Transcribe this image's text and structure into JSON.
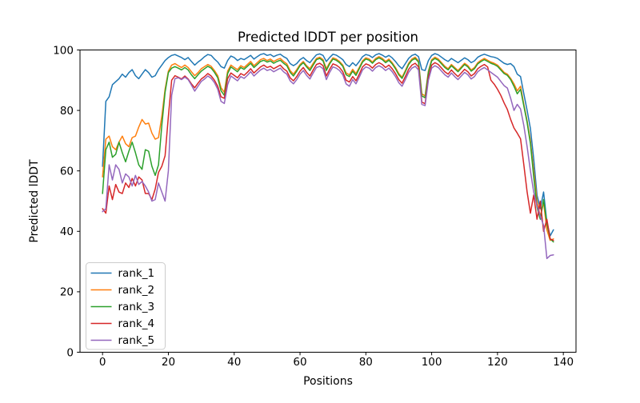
{
  "chart_data": {
    "type": "line",
    "title": "Predicted lDDT per position",
    "xlabel": "Positions",
    "ylabel": "Predicted lDDT",
    "x_range": [
      0,
      137
    ],
    "xlim": [
      -6.85,
      143.85
    ],
    "ylim": [
      0,
      100
    ],
    "xticks": [
      0,
      20,
      40,
      60,
      80,
      100,
      120,
      140
    ],
    "yticks": [
      0,
      20,
      40,
      60,
      80,
      100
    ],
    "grid": false,
    "legend_position": "lower left",
    "legend_border_color": "#cccccc",
    "background_color": "#ffffff",
    "spine_color": "#000000",
    "series": [
      {
        "name": "rank_1",
        "color": "#1f77b4",
        "values": [
          61.5,
          83,
          84.5,
          88.5,
          89.5,
          90.5,
          92,
          91,
          92.5,
          93.5,
          91.5,
          90.5,
          92,
          93.5,
          92.5,
          91,
          91.5,
          93.5,
          95,
          96.5,
          97.5,
          98.2,
          98.5,
          98,
          97.5,
          96.8,
          97.5,
          96.2,
          95,
          96,
          96.8,
          97.8,
          98.5,
          98.2,
          97,
          96,
          94.5,
          94,
          96.5,
          98,
          97.5,
          96.5,
          97.2,
          96.8,
          97.5,
          98.2,
          97,
          97.8,
          98.5,
          98.8,
          98.2,
          98.5,
          97.8,
          98.3,
          98.6,
          97.8,
          97.2,
          95.5,
          94.8,
          95.5,
          96.8,
          97.5,
          96.5,
          95.8,
          97.2,
          98.4,
          98.7,
          98.2,
          96.2,
          97.5,
          98.6,
          98.3,
          97.6,
          96.8,
          95.2,
          94.5,
          95.8,
          94.8,
          96.2,
          97.8,
          98.5,
          98.2,
          97.5,
          98.4,
          98.8,
          98.3,
          97.6,
          98.2,
          97.4,
          96.2,
          94.8,
          93.8,
          95.5,
          97.2,
          98.2,
          98.6,
          97.8,
          93.5,
          93.2,
          96.5,
          98.2,
          98.8,
          98.4,
          97.6,
          96.8,
          96.2,
          97.2,
          96.5,
          95.8,
          96.6,
          97.4,
          96.8,
          95.8,
          96.4,
          97.6,
          98.2,
          98.6,
          98.2,
          97.8,
          97.6,
          97.2,
          96.4,
          95.6,
          95.2,
          95.5,
          94.5,
          92,
          91.2,
          85.5,
          80,
          74,
          64,
          52,
          47.5,
          53,
          43,
          38.5,
          40.5
        ]
      },
      {
        "name": "rank_2",
        "color": "#ff7f0e",
        "values": [
          58,
          70.5,
          71.5,
          68,
          67,
          69.5,
          71.5,
          69,
          68,
          71,
          71.5,
          74.5,
          77,
          75.5,
          75.8,
          72.5,
          70.5,
          71,
          78,
          87,
          93,
          95,
          95.5,
          94.8,
          94.2,
          95,
          94.2,
          92.8,
          91.5,
          92.5,
          93.8,
          94.5,
          95.2,
          94.6,
          93.2,
          91.5,
          87.5,
          86,
          93,
          95,
          94.2,
          93.5,
          94.8,
          94.2,
          95.2,
          96.2,
          94.8,
          95.8,
          96.8,
          97.2,
          96.5,
          97,
          96.2,
          96.8,
          97.2,
          96.2,
          95.4,
          93.2,
          92,
          93.5,
          95.2,
          96.2,
          94.8,
          93.8,
          95.6,
          97.2,
          97.6,
          96.8,
          93.8,
          95.8,
          97.4,
          97,
          96.2,
          95,
          92.4,
          91.8,
          93.6,
          92.2,
          94.2,
          96.4,
          97.4,
          97,
          96,
          97.2,
          97.8,
          97.2,
          96.2,
          97,
          95.8,
          94.2,
          92.2,
          91,
          93.2,
          95.6,
          97,
          97.6,
          96.4,
          85.5,
          84.8,
          93,
          96.8,
          97.6,
          97,
          95.8,
          94.6,
          93.8,
          95.2,
          94.2,
          93.2,
          94.4,
          95.6,
          94.8,
          93.4,
          94.2,
          95.8,
          96.6,
          97.2,
          96.6,
          96,
          95.6,
          95,
          93.8,
          92.6,
          92,
          90.6,
          88.8,
          86.5,
          88,
          82,
          76.5,
          70,
          60,
          50,
          45,
          49.5,
          40.5,
          37,
          37.5
        ]
      },
      {
        "name": "rank_3",
        "color": "#2ca02c",
        "values": [
          52.5,
          67,
          69.5,
          64.5,
          65.5,
          69.5,
          66,
          63,
          66.5,
          69.5,
          66,
          62,
          60.5,
          67,
          66.5,
          61.5,
          58.5,
          62,
          75,
          86,
          92.5,
          94,
          94.5,
          94,
          93.4,
          94.2,
          93.4,
          91.8,
          90.5,
          91.8,
          93,
          93.8,
          94.6,
          94,
          92.6,
          90.8,
          86.5,
          85,
          92.2,
          94.4,
          93.6,
          92.8,
          94.2,
          93.6,
          94.6,
          95.6,
          94.2,
          95.2,
          96.2,
          96.6,
          96,
          96.4,
          95.6,
          96.2,
          96.6,
          95.6,
          94.8,
          92.6,
          91.4,
          93,
          94.8,
          95.8,
          94.4,
          93.2,
          95,
          96.8,
          97.2,
          96.4,
          93.2,
          95.4,
          97,
          96.6,
          95.8,
          94.6,
          91.8,
          91.2,
          93,
          91.6,
          93.8,
          96,
          97,
          96.6,
          95.6,
          96.8,
          97.4,
          96.8,
          95.8,
          96.6,
          95.4,
          93.8,
          91.8,
          90.6,
          92.8,
          95.2,
          96.6,
          97.2,
          96,
          84.8,
          84.2,
          92.6,
          96.4,
          97.2,
          96.6,
          95.4,
          94.2,
          93.4,
          94.8,
          93.8,
          92.8,
          94,
          95.2,
          94.4,
          93,
          93.8,
          95.4,
          96.2,
          96.8,
          96.2,
          95.6,
          95.2,
          94.6,
          93.4,
          92.2,
          91.6,
          90.2,
          88,
          85.5,
          87,
          81.5,
          76,
          69,
          58,
          48,
          44,
          50.5,
          42.5,
          37.5,
          36.5
        ]
      },
      {
        "name": "rank_4",
        "color": "#d62728",
        "values": [
          47.5,
          46,
          55,
          50.5,
          55.5,
          53,
          52.5,
          56,
          54.5,
          57.5,
          55,
          58,
          57,
          52.5,
          52.5,
          50.5,
          54,
          59.5,
          61.5,
          65,
          78,
          90,
          91.5,
          91,
          90.4,
          91.4,
          90.4,
          88.8,
          87.5,
          89,
          90.4,
          91.2,
          92.2,
          91.4,
          90,
          88,
          84.5,
          84,
          90.5,
          92.4,
          91.6,
          90.8,
          92.2,
          91.6,
          92.6,
          93.8,
          92.4,
          93.4,
          94.4,
          95,
          94.2,
          94.6,
          93.8,
          94.4,
          95,
          93.8,
          93,
          90.8,
          89.8,
          91.2,
          93,
          94.2,
          92.6,
          91.4,
          93.4,
          95.2,
          95.6,
          94.8,
          91.4,
          93.6,
          95.4,
          95,
          94.2,
          92.8,
          90,
          89.4,
          91.2,
          89.8,
          92,
          94.4,
          95.4,
          95,
          94,
          95.2,
          95.8,
          95.2,
          94.2,
          95,
          93.8,
          92.2,
          90.2,
          89,
          91.2,
          93.6,
          95,
          95.6,
          94.4,
          82.8,
          82.2,
          91,
          95,
          95.8,
          95.2,
          94,
          92.8,
          92,
          93.4,
          92.2,
          91.2,
          92.4,
          93.6,
          92.8,
          91.4,
          92.2,
          93.8,
          94.6,
          95.2,
          94.4,
          90,
          88.7,
          87,
          85,
          82.5,
          80.3,
          77,
          74.2,
          72.5,
          70.6,
          62,
          53,
          46,
          52,
          44,
          50,
          40,
          44,
          37.5,
          37
        ]
      },
      {
        "name": "rank_5",
        "color": "#9467bd",
        "values": [
          46.5,
          47.5,
          62,
          57,
          62,
          60.5,
          56,
          59,
          58,
          55,
          58.5,
          55.5,
          56.5,
          55,
          53,
          50,
          50.5,
          56,
          53,
          50,
          60,
          85,
          90.5,
          90.8,
          90.2,
          91,
          90.2,
          88.4,
          86.4,
          88,
          89.6,
          90.4,
          91.4,
          90.6,
          89.2,
          87,
          83,
          82.3,
          88.5,
          91.4,
          90.6,
          89.8,
          91.2,
          90.6,
          91.6,
          92.8,
          91.4,
          92.4,
          93.4,
          94,
          93.2,
          93.6,
          92.8,
          93.4,
          94,
          92.8,
          92,
          89.8,
          88.8,
          90.2,
          92,
          93.2,
          91.6,
          90.4,
          92.4,
          94.2,
          94.6,
          93.8,
          90.2,
          92.6,
          94.4,
          94,
          93.2,
          91.8,
          88.8,
          88,
          90.2,
          88.8,
          91,
          93.4,
          94.4,
          94,
          93,
          94.2,
          94.8,
          94.2,
          93.2,
          94,
          92.8,
          91.2,
          89.2,
          88,
          90.2,
          92.6,
          94,
          94.6,
          93.4,
          82,
          81.6,
          90,
          94,
          94.8,
          94.2,
          93,
          91.8,
          91,
          92.4,
          91.2,
          90.2,
          91.4,
          92.6,
          91.8,
          90.4,
          91.2,
          92.8,
          93.6,
          94.2,
          93.4,
          92.6,
          91.8,
          91,
          89.6,
          88.2,
          87.4,
          84,
          80,
          82,
          80.5,
          75,
          68,
          60,
          53,
          48.5,
          45,
          42,
          31,
          32,
          32.2
        ]
      }
    ]
  },
  "legend": {
    "items": [
      {
        "label": "rank_1",
        "color": "#1f77b4"
      },
      {
        "label": "rank_2",
        "color": "#ff7f0e"
      },
      {
        "label": "rank_3",
        "color": "#2ca02c"
      },
      {
        "label": "rank_4",
        "color": "#d62728"
      },
      {
        "label": "rank_5",
        "color": "#9467bd"
      }
    ]
  }
}
